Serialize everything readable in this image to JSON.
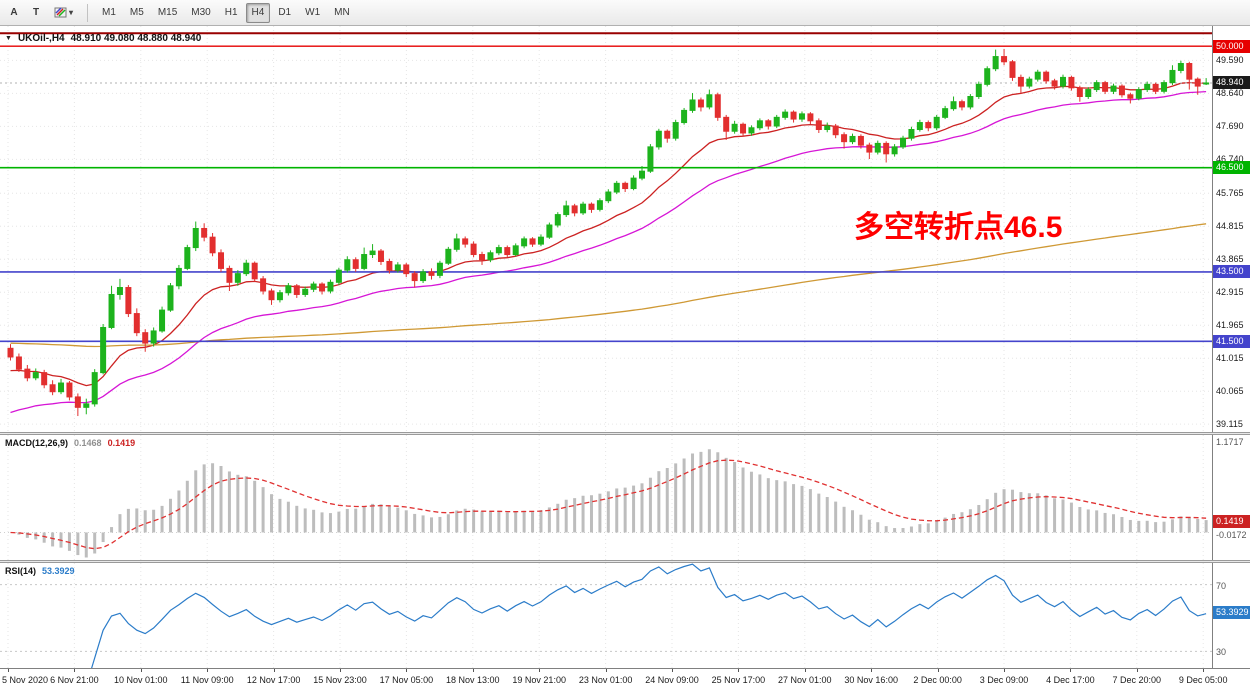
{
  "toolbar": {
    "buttons": [
      {
        "id": "annotations",
        "label": "A"
      },
      {
        "id": "text-tool",
        "label": "T"
      }
    ],
    "timeframes": [
      "M1",
      "M5",
      "M15",
      "M30",
      "H1",
      "H4",
      "D1",
      "W1",
      "MN"
    ],
    "active_timeframe": "H4"
  },
  "header": {
    "marker": "▼",
    "symbol": "UKOil-,H4",
    "ohlc_text": "48.910 49.080 48.880 48.940"
  },
  "indicators": {
    "macd": {
      "label": "MACD(12,26,9)",
      "value_main": "0.1468",
      "value_signal": "0.1419",
      "scale_max": "1.1717",
      "scale_min": "-0.0172"
    },
    "rsi": {
      "label": "RSI(14)",
      "value": "53.3929",
      "level_high": "70",
      "level_low": "30"
    }
  },
  "chart_data": {
    "type": "candlestick",
    "symbol": "UKOil-",
    "timeframe": "H4",
    "title": "UKOil-,H4",
    "ohlc_current": {
      "open": 48.91,
      "high": 49.08,
      "low": 48.88,
      "close": 48.94
    },
    "y_range": [
      38.89,
      50.58
    ],
    "y_axis_labels": [
      "49.590",
      "48.640",
      "47.690",
      "46.740",
      "45.765",
      "44.815",
      "43.865",
      "42.915",
      "41.965",
      "41.015",
      "40.065",
      "39.115"
    ],
    "x_axis_labels": [
      "5 Nov 2020",
      "6 Nov 21:00",
      "10 Nov 01:00",
      "11 Nov 09:00",
      "12 Nov 17:00",
      "15 Nov 23:00",
      "17 Nov 05:00",
      "18 Nov 13:00",
      "19 Nov 21:00",
      "23 Nov 01:00",
      "24 Nov 09:00",
      "25 Nov 17:00",
      "27 Nov 01:00",
      "30 Nov 16:00",
      "2 Dec 00:00",
      "3 Dec 09:00",
      "4 Dec 17:00",
      "7 Dec 20:00",
      "9 Dec 05:00"
    ],
    "horizontal_lines": [
      {
        "price": 50.37,
        "color": "#990000",
        "width": 2,
        "badge": null,
        "badge_color": null
      },
      {
        "price": 50.0,
        "color": "#e60000",
        "width": 1.4,
        "badge": "50.000",
        "badge_color": "#e60000"
      },
      {
        "price": 46.5,
        "color": "#00b400",
        "width": 1.6,
        "badge": "46.500",
        "badge_color": "#00b400"
      },
      {
        "price": 43.5,
        "color": "#4444cc",
        "width": 1.6,
        "badge": "43.500",
        "badge_color": "#4444cc"
      },
      {
        "price": 41.5,
        "color": "#4444cc",
        "width": 1.6,
        "badge": "41.500",
        "badge_color": "#4444cc"
      }
    ],
    "current_price": {
      "value": 48.94,
      "badge": "48.940",
      "badge_color": "#1a1a1a"
    },
    "annotation": {
      "text": "多空转折点46.5",
      "color": "#ff0000",
      "price": 44.5,
      "x_frac": 0.705
    },
    "candle_colors": {
      "up": "#1db31d",
      "down": "#e22f2f"
    },
    "moving_averages": [
      {
        "name": "fast",
        "color": "#cc2222",
        "alpha": 0.13,
        "seed": 40.6
      },
      {
        "name": "mid",
        "color": "#d616d6",
        "alpha": 0.06,
        "seed": 39.35
      },
      {
        "name": "slow",
        "color": "#cf9935",
        "alpha": 0.008,
        "seed": 41.45
      }
    ],
    "macd": {
      "fast": 12,
      "slow": 26,
      "signal": 9,
      "histogram_color": "#bdbdbd",
      "signal_color": "#e03131"
    },
    "rsi": {
      "period": 14,
      "levels": [
        30,
        70
      ],
      "color": "#2b7cc9",
      "range": [
        20,
        83
      ]
    },
    "candles": [
      [
        41.3,
        41.42,
        40.95,
        41.05
      ],
      [
        41.05,
        41.15,
        40.62,
        40.7
      ],
      [
        40.7,
        40.82,
        40.35,
        40.45
      ],
      [
        40.45,
        40.72,
        40.38,
        40.6
      ],
      [
        40.6,
        40.68,
        40.15,
        40.25
      ],
      [
        40.25,
        40.38,
        39.95,
        40.05
      ],
      [
        40.05,
        40.42,
        39.98,
        40.3
      ],
      [
        40.3,
        40.36,
        39.8,
        39.9
      ],
      [
        39.9,
        40.0,
        39.35,
        39.6
      ],
      [
        39.6,
        39.85,
        39.4,
        39.7
      ],
      [
        39.7,
        40.7,
        39.62,
        40.6
      ],
      [
        40.6,
        42.0,
        40.55,
        41.9
      ],
      [
        41.9,
        43.1,
        41.85,
        42.85
      ],
      [
        42.85,
        43.3,
        42.7,
        43.05
      ],
      [
        43.05,
        43.12,
        42.2,
        42.3
      ],
      [
        42.3,
        42.45,
        41.65,
        41.75
      ],
      [
        41.75,
        41.85,
        41.2,
        41.45
      ],
      [
        41.45,
        41.9,
        41.35,
        41.8
      ],
      [
        41.8,
        42.5,
        41.75,
        42.4
      ],
      [
        42.4,
        43.18,
        42.35,
        43.1
      ],
      [
        43.1,
        43.7,
        43.0,
        43.6
      ],
      [
        43.6,
        44.28,
        43.55,
        44.2
      ],
      [
        44.2,
        44.95,
        44.1,
        44.75
      ],
      [
        44.75,
        44.9,
        44.38,
        44.5
      ],
      [
        44.5,
        44.62,
        43.95,
        44.05
      ],
      [
        44.05,
        44.15,
        43.5,
        43.6
      ],
      [
        43.6,
        43.68,
        42.95,
        43.2
      ],
      [
        43.2,
        43.55,
        43.1,
        43.45
      ],
      [
        43.45,
        43.85,
        43.38,
        43.75
      ],
      [
        43.75,
        43.8,
        43.22,
        43.3
      ],
      [
        43.3,
        43.38,
        42.85,
        42.95
      ],
      [
        42.95,
        43.02,
        42.55,
        42.7
      ],
      [
        42.7,
        42.98,
        42.62,
        42.9
      ],
      [
        42.9,
        43.18,
        42.82,
        43.1
      ],
      [
        43.1,
        43.15,
        42.75,
        42.85
      ],
      [
        42.85,
        43.08,
        42.78,
        43.0
      ],
      [
        43.0,
        43.22,
        42.92,
        43.15
      ],
      [
        43.15,
        43.2,
        42.85,
        42.95
      ],
      [
        42.95,
        43.28,
        42.88,
        43.2
      ],
      [
        43.2,
        43.62,
        43.12,
        43.55
      ],
      [
        43.55,
        43.95,
        43.48,
        43.85
      ],
      [
        43.85,
        43.92,
        43.5,
        43.6
      ],
      [
        43.6,
        44.2,
        43.55,
        44.0
      ],
      [
        44.0,
        44.3,
        43.9,
        44.1
      ],
      [
        44.1,
        44.16,
        43.7,
        43.8
      ],
      [
        43.8,
        43.88,
        43.45,
        43.55
      ],
      [
        43.55,
        43.78,
        43.48,
        43.7
      ],
      [
        43.7,
        43.76,
        43.35,
        43.45
      ],
      [
        43.45,
        43.52,
        43.05,
        43.25
      ],
      [
        43.25,
        43.58,
        43.18,
        43.5
      ],
      [
        43.5,
        43.6,
        43.28,
        43.4
      ],
      [
        43.4,
        43.82,
        43.32,
        43.75
      ],
      [
        43.75,
        44.22,
        43.7,
        44.15
      ],
      [
        44.15,
        44.6,
        44.08,
        44.45
      ],
      [
        44.45,
        44.52,
        44.2,
        44.3
      ],
      [
        44.3,
        44.38,
        43.92,
        44.0
      ],
      [
        44.0,
        44.08,
        43.7,
        43.85
      ],
      [
        43.85,
        44.12,
        43.78,
        44.05
      ],
      [
        44.05,
        44.28,
        43.98,
        44.2
      ],
      [
        44.2,
        44.26,
        43.92,
        44.0
      ],
      [
        44.0,
        44.32,
        43.95,
        44.25
      ],
      [
        44.25,
        44.52,
        44.18,
        44.45
      ],
      [
        44.45,
        44.5,
        44.22,
        44.3
      ],
      [
        44.3,
        44.58,
        44.24,
        44.5
      ],
      [
        44.5,
        44.92,
        44.45,
        44.85
      ],
      [
        44.85,
        45.22,
        44.78,
        45.15
      ],
      [
        45.15,
        45.55,
        45.08,
        45.4
      ],
      [
        45.4,
        45.46,
        45.1,
        45.2
      ],
      [
        45.2,
        45.52,
        45.14,
        45.45
      ],
      [
        45.45,
        45.5,
        45.2,
        45.3
      ],
      [
        45.3,
        45.62,
        45.24,
        45.55
      ],
      [
        45.55,
        45.88,
        45.48,
        45.8
      ],
      [
        45.8,
        46.12,
        45.74,
        46.05
      ],
      [
        46.05,
        46.1,
        45.8,
        45.9
      ],
      [
        45.9,
        46.28,
        45.85,
        46.2
      ],
      [
        46.2,
        46.55,
        46.14,
        46.4
      ],
      [
        46.4,
        47.18,
        46.35,
        47.1
      ],
      [
        47.1,
        47.62,
        47.02,
        47.55
      ],
      [
        47.55,
        47.6,
        47.22,
        47.35
      ],
      [
        47.35,
        47.88,
        47.28,
        47.8
      ],
      [
        47.8,
        48.22,
        47.74,
        48.15
      ],
      [
        48.15,
        48.65,
        48.08,
        48.45
      ],
      [
        48.45,
        48.52,
        48.12,
        48.25
      ],
      [
        48.25,
        48.75,
        48.18,
        48.6
      ],
      [
        48.6,
        48.66,
        47.85,
        47.95
      ],
      [
        47.95,
        48.02,
        47.3,
        47.55
      ],
      [
        47.55,
        47.85,
        47.48,
        47.75
      ],
      [
        47.75,
        47.8,
        47.4,
        47.5
      ],
      [
        47.5,
        47.72,
        47.42,
        47.65
      ],
      [
        47.65,
        47.92,
        47.58,
        47.85
      ],
      [
        47.85,
        47.9,
        47.6,
        47.7
      ],
      [
        47.7,
        48.02,
        47.64,
        47.95
      ],
      [
        47.95,
        48.18,
        47.88,
        48.1
      ],
      [
        48.1,
        48.15,
        47.8,
        47.9
      ],
      [
        47.9,
        48.12,
        47.82,
        48.05
      ],
      [
        48.05,
        48.1,
        47.75,
        47.85
      ],
      [
        47.85,
        47.92,
        47.5,
        47.6
      ],
      [
        47.6,
        47.8,
        47.52,
        47.7
      ],
      [
        47.7,
        47.76,
        47.35,
        47.45
      ],
      [
        47.45,
        47.52,
        47.05,
        47.25
      ],
      [
        47.25,
        47.48,
        47.18,
        47.4
      ],
      [
        47.4,
        47.46,
        47.05,
        47.15
      ],
      [
        47.15,
        47.22,
        46.75,
        46.95
      ],
      [
        46.95,
        47.28,
        46.88,
        47.2
      ],
      [
        47.2,
        47.26,
        46.65,
        46.9
      ],
      [
        46.9,
        47.18,
        46.82,
        47.1
      ],
      [
        47.1,
        47.42,
        47.04,
        47.35
      ],
      [
        47.35,
        47.68,
        47.28,
        47.6
      ],
      [
        47.6,
        47.88,
        47.54,
        47.8
      ],
      [
        47.8,
        47.86,
        47.55,
        47.65
      ],
      [
        47.65,
        48.02,
        47.58,
        47.95
      ],
      [
        47.95,
        48.28,
        47.9,
        48.2
      ],
      [
        48.2,
        48.55,
        48.14,
        48.4
      ],
      [
        48.4,
        48.46,
        48.15,
        48.25
      ],
      [
        48.25,
        48.62,
        48.18,
        48.55
      ],
      [
        48.55,
        48.98,
        48.48,
        48.9
      ],
      [
        48.9,
        49.42,
        48.84,
        49.35
      ],
      [
        49.35,
        49.9,
        49.28,
        49.7
      ],
      [
        49.7,
        49.92,
        49.45,
        49.55
      ],
      [
        49.55,
        49.6,
        49.0,
        49.1
      ],
      [
        49.1,
        49.18,
        48.65,
        48.85
      ],
      [
        48.85,
        49.12,
        48.78,
        49.05
      ],
      [
        49.05,
        49.32,
        48.98,
        49.25
      ],
      [
        49.25,
        49.3,
        48.92,
        49.0
      ],
      [
        49.0,
        49.06,
        48.75,
        48.85
      ],
      [
        48.85,
        49.18,
        48.78,
        49.1
      ],
      [
        49.1,
        49.15,
        48.72,
        48.8
      ],
      [
        48.8,
        48.86,
        48.4,
        48.55
      ],
      [
        48.55,
        48.82,
        48.48,
        48.75
      ],
      [
        48.75,
        49.02,
        48.68,
        48.95
      ],
      [
        48.95,
        49.0,
        48.62,
        48.7
      ],
      [
        48.7,
        48.92,
        48.62,
        48.85
      ],
      [
        48.85,
        48.9,
        48.52,
        48.6
      ],
      [
        48.6,
        48.66,
        48.35,
        48.5
      ],
      [
        48.5,
        48.82,
        48.44,
        48.75
      ],
      [
        48.75,
        48.98,
        48.68,
        48.9
      ],
      [
        48.9,
        48.95,
        48.62,
        48.7
      ],
      [
        48.7,
        49.02,
        48.64,
        48.95
      ],
      [
        48.95,
        49.45,
        48.88,
        49.3
      ],
      [
        49.3,
        49.58,
        49.22,
        49.5
      ],
      [
        49.5,
        49.55,
        48.75,
        49.05
      ],
      [
        49.05,
        49.1,
        48.6,
        48.85
      ],
      [
        48.91,
        49.08,
        48.88,
        48.94
      ]
    ]
  }
}
